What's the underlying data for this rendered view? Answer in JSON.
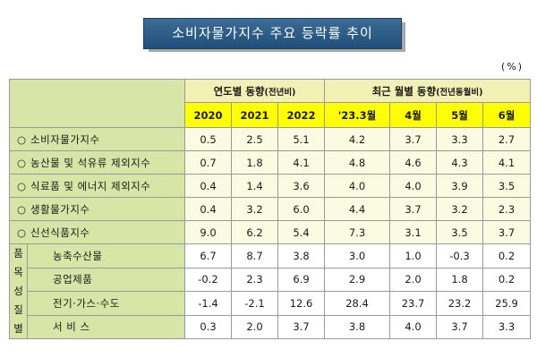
{
  "title": "소비자물가지수 주요 등락률 추이",
  "unit": "(%)",
  "headers": {
    "annual": "연도별 동향",
    "annual_note": "(전년비)",
    "monthly": "최근 월별 동향",
    "monthly_note": "(전년동월비)",
    "columns": [
      "2020",
      "2021",
      "2022",
      "'23.3월",
      "4월",
      "5월",
      "6월"
    ]
  },
  "bullet": "○",
  "rows": [
    {
      "label": "소비자물가지수",
      "values": [
        "0.5",
        "2.5",
        "5.1",
        "4.2",
        "3.7",
        "3.3",
        "2.7"
      ]
    },
    {
      "label": "농산물 및 석유류 제외지수",
      "values": [
        "0.7",
        "1.8",
        "4.1",
        "4.8",
        "4.6",
        "4.3",
        "4.1"
      ]
    },
    {
      "label": "식료품 및 에너지 제외지수",
      "values": [
        "0.4",
        "1.4",
        "3.6",
        "4.0",
        "4.0",
        "3.9",
        "3.5"
      ]
    },
    {
      "label": "생활물가지수",
      "values": [
        "0.4",
        "3.2",
        "6.0",
        "4.4",
        "3.7",
        "3.2",
        "2.3"
      ]
    },
    {
      "label": "신선식품지수",
      "values": [
        "9.0",
        "6.2",
        "5.4",
        "7.3",
        "3.1",
        "3.5",
        "3.7"
      ]
    }
  ],
  "group": {
    "label_chars": [
      "품",
      "목",
      "성",
      "질",
      "별"
    ],
    "rows": [
      {
        "label": "농축수산물",
        "values": [
          "6.7",
          "8.7",
          "3.8",
          "3.0",
          "1.0",
          "-0.3",
          "0.2"
        ]
      },
      {
        "label": "공업제품",
        "values": [
          "-0.2",
          "2.3",
          "6.9",
          "2.9",
          "2.0",
          "1.8",
          "0.2"
        ]
      },
      {
        "label": "전기·가스·수도",
        "values": [
          "-1.4",
          "-2.1",
          "12.6",
          "28.4",
          "23.7",
          "23.2",
          "25.9"
        ]
      },
      {
        "label": "서 비 스",
        "values": [
          "0.3",
          "2.0",
          "3.7",
          "3.8",
          "4.0",
          "3.7",
          "3.3"
        ]
      }
    ]
  }
}
